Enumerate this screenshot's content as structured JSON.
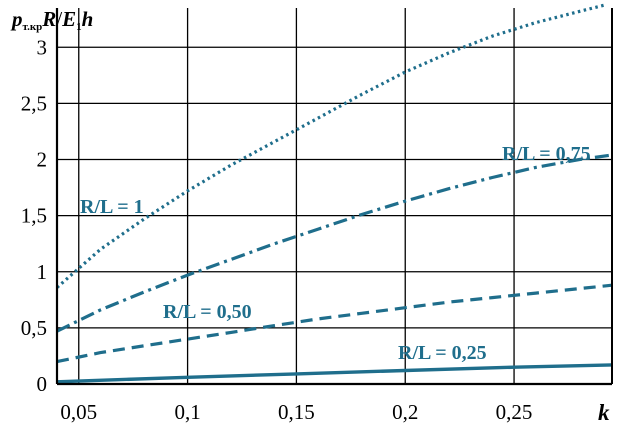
{
  "chart_data": {
    "type": "line",
    "xlabel": "k",
    "ylabel": {
      "main": "p",
      "sub": "т.кр",
      "rest_R": "R",
      "slash": "/",
      "E": "E",
      "E_sub": "1",
      "h": "h"
    },
    "xlim": [
      0.04,
      0.295
    ],
    "ylim": [
      0,
      3.35
    ],
    "x_ticks": [
      0.05,
      0.1,
      0.15,
      0.2,
      0.25
    ],
    "x_tick_labels": [
      "0,05",
      "0,1",
      "0,15",
      "0,2",
      "0,25"
    ],
    "y_ticks": [
      0,
      0.5,
      1,
      1.5,
      2,
      2.5,
      3
    ],
    "y_tick_labels": [
      "0",
      "0,5",
      "1",
      "1,5",
      "2",
      "2,5",
      "3"
    ],
    "grid": true,
    "line_color": "#1f6e8c",
    "series": [
      {
        "name": "R/L = 1",
        "style": "dotted",
        "x": [
          0.04,
          0.06,
          0.08,
          0.1,
          0.12,
          0.14,
          0.16,
          0.18,
          0.2,
          0.22,
          0.24,
          0.26,
          0.28,
          0.2925
        ],
        "values": [
          0.86,
          1.2,
          1.47,
          1.72,
          1.95,
          2.16,
          2.37,
          2.58,
          2.78,
          2.95,
          3.1,
          3.22,
          3.32,
          3.38
        ]
      },
      {
        "name": "R/L = 0,75",
        "style": "dashdot",
        "x": [
          0.04,
          0.06,
          0.08,
          0.1,
          0.12,
          0.14,
          0.16,
          0.18,
          0.2,
          0.22,
          0.24,
          0.26,
          0.28,
          0.295
        ],
        "values": [
          0.47,
          0.66,
          0.82,
          0.97,
          1.11,
          1.25,
          1.38,
          1.51,
          1.63,
          1.74,
          1.84,
          1.93,
          2.0,
          2.04
        ]
      },
      {
        "name": "R/L = 0,50",
        "style": "dashed",
        "x": [
          0.04,
          0.06,
          0.08,
          0.1,
          0.12,
          0.14,
          0.16,
          0.18,
          0.2,
          0.22,
          0.24,
          0.26,
          0.28,
          0.295
        ],
        "values": [
          0.2,
          0.28,
          0.34,
          0.4,
          0.46,
          0.52,
          0.58,
          0.63,
          0.68,
          0.73,
          0.77,
          0.81,
          0.85,
          0.88
        ]
      },
      {
        "name": "R/L = 0,25",
        "style": "solid",
        "x": [
          0.04,
          0.1,
          0.15,
          0.2,
          0.25,
          0.295
        ],
        "values": [
          0.02,
          0.06,
          0.09,
          0.12,
          0.15,
          0.17
        ]
      }
    ],
    "annotations": [
      "R/L = 1",
      "R/L = 0,75",
      "R/L = 0,50",
      "R/L = 0,25"
    ]
  }
}
